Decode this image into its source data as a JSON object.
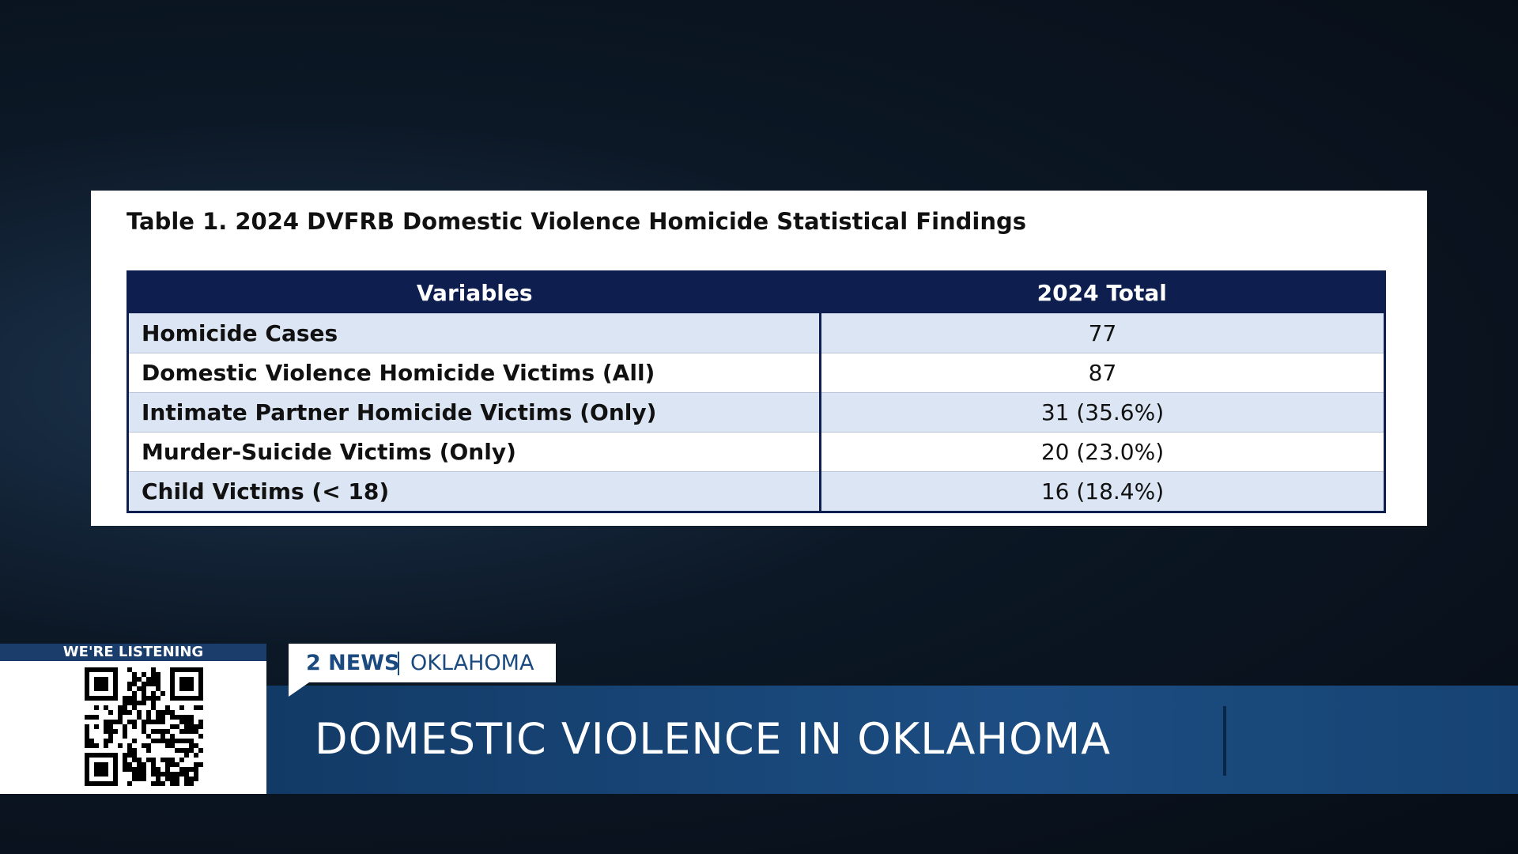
{
  "table": {
    "title": "Table 1. 2024 DVFRB Domestic Violence Homicide Statistical Findings",
    "header": [
      "Variables",
      "2024 Total"
    ],
    "rows": [
      [
        "Homicide Cases",
        "77"
      ],
      [
        "Domestic Violence Homicide Victims (All)",
        "87"
      ],
      [
        "Intimate Partner Homicide Victims (Only)",
        "31 (35.6%)"
      ],
      [
        "Murder-Suicide Victims (Only)",
        "20 (23.0%)"
      ],
      [
        "Child Victims (< 18)",
        "16 (18.4%)"
      ]
    ]
  },
  "lower_third": {
    "qr_label": "WE'RE LISTENING",
    "station": "2 NEWS",
    "region": "OKLAHOMA",
    "headline": "DOMESTIC VIOLENCE IN OKLAHOMA"
  }
}
